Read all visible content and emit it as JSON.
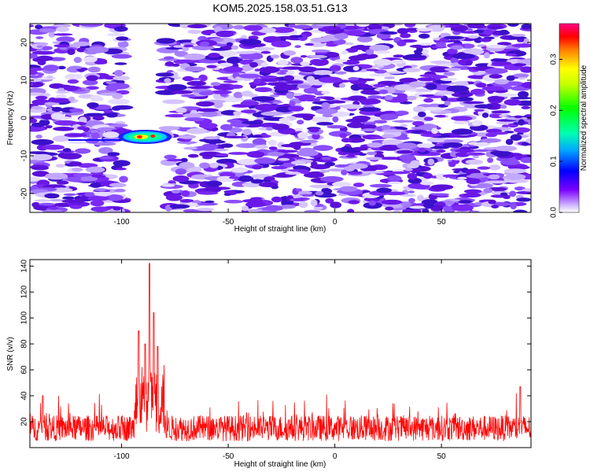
{
  "title": "KOM5.2025.158.03.51.G13",
  "chart_data": [
    {
      "type": "heatmap",
      "xlabel": "Height of straight line (km)",
      "ylabel": "Frequency (Hz)",
      "xlim": [
        -143,
        92
      ],
      "ylim": [
        -25,
        25
      ],
      "xticks": [
        -100,
        -50,
        0,
        50
      ],
      "yticks": [
        -20,
        -10,
        0,
        10,
        20
      ],
      "colorbar": {
        "label": "Normalized spectral amplitude",
        "range": [
          0,
          0.37
        ],
        "ticks": [
          0.0,
          0.1,
          0.2,
          0.3
        ]
      },
      "data_gap_km": [
        -99,
        -80
      ],
      "hotspot": {
        "x_range_km": [
          -100,
          -78
        ],
        "freq_hz": -5,
        "peak_amplitude": 0.36
      },
      "grid": false
    },
    {
      "type": "line",
      "xlabel": "Height of straight line (km)",
      "ylabel": "SNR (v/v)",
      "xlim": [
        -143,
        92
      ],
      "ylim": [
        0,
        145
      ],
      "xticks": [
        -100,
        -50,
        0,
        50
      ],
      "yticks": [
        20,
        40,
        60,
        80,
        100,
        120,
        140
      ],
      "baseline_range": [
        5,
        25
      ],
      "peaks": [
        {
          "x": -92,
          "y": 90
        },
        {
          "x": -89,
          "y": 80
        },
        {
          "x": -87,
          "y": 142
        },
        {
          "x": -85,
          "y": 104
        },
        {
          "x": -83,
          "y": 78
        },
        {
          "x": 87,
          "y": 47
        },
        {
          "x": -137,
          "y": 40
        }
      ],
      "color": "#ff0000",
      "grid": false
    }
  ]
}
